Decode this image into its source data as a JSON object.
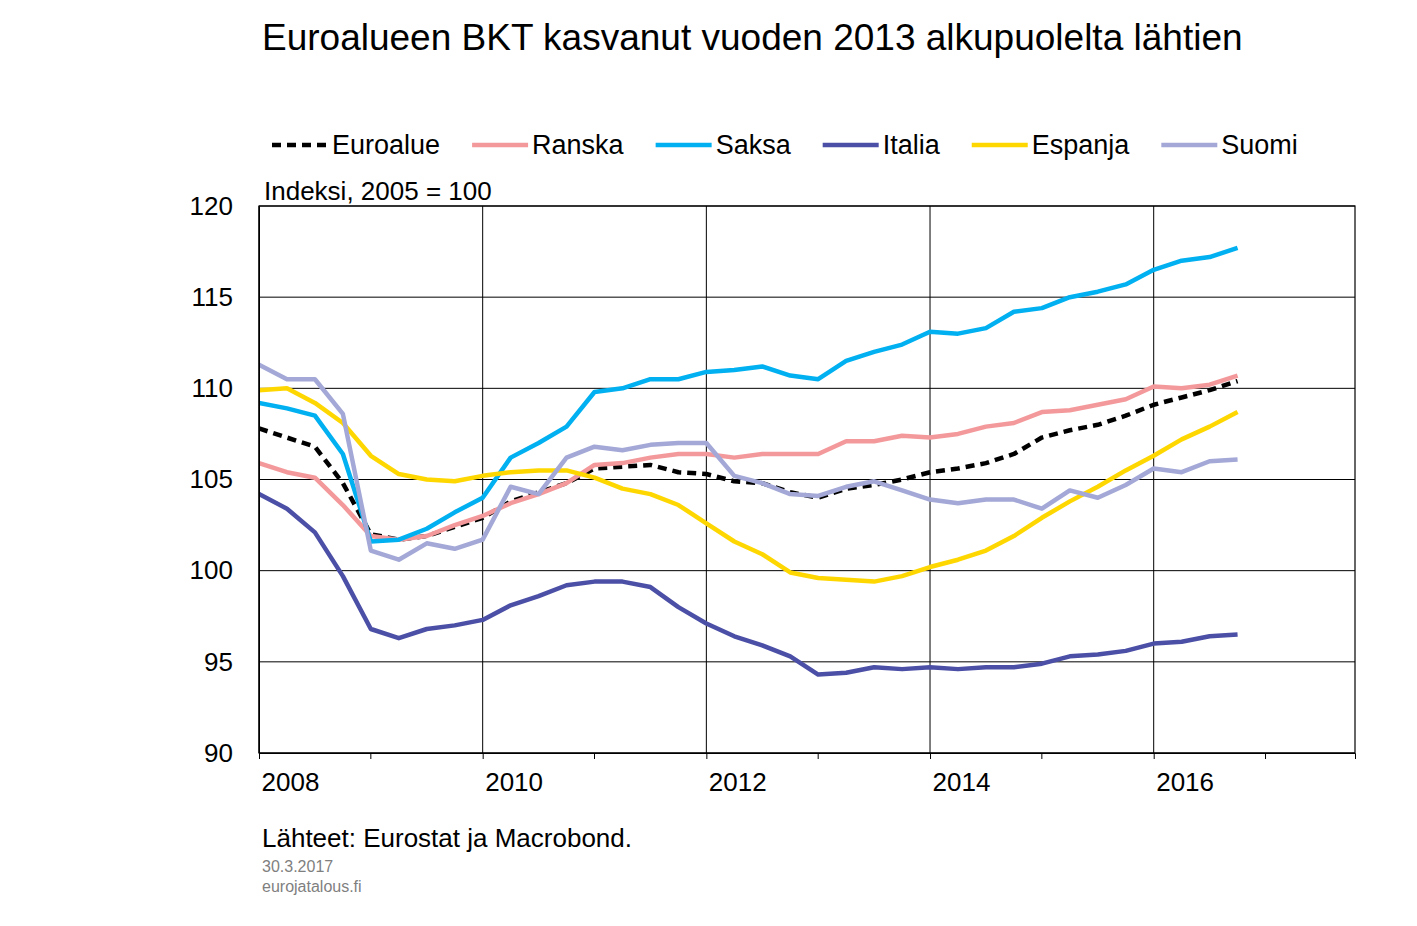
{
  "chart_data": {
    "type": "line",
    "title": "Euroalueen BKT kasvanut vuoden 2013 alkupuolelta lähtien",
    "ylabel": "Indeksi, 2005 = 100",
    "source": "Lähteet: Eurostat ja Macrobond.",
    "notes": [
      "30.3.2017",
      "eurojatalous.fi"
    ],
    "legend": "top",
    "grid": true,
    "xlim": [
      2008,
      2017.8
    ],
    "xticks": [
      2008,
      2010,
      2012,
      2014,
      2016
    ],
    "ylim": [
      90,
      120
    ],
    "yticks": [
      90,
      95,
      100,
      105,
      110,
      115,
      120
    ],
    "x": [
      2008,
      2008.25,
      2008.5,
      2008.75,
      2009,
      2009.25,
      2009.5,
      2009.75,
      2010,
      2010.25,
      2010.5,
      2010.75,
      2011,
      2011.25,
      2011.5,
      2011.75,
      2012,
      2012.25,
      2012.5,
      2012.75,
      2013,
      2013.25,
      2013.5,
      2013.75,
      2014,
      2014.25,
      2014.5,
      2014.75,
      2015,
      2015.25,
      2015.5,
      2015.75,
      2016,
      2016.25,
      2016.5,
      2016.75
    ],
    "series": [
      {
        "name": "Euroalue",
        "color": "#000000",
        "line_style": "dashed",
        "values": [
          107.8,
          107.3,
          106.8,
          104.8,
          102.0,
          101.7,
          101.9,
          102.4,
          102.9,
          103.8,
          104.3,
          104.8,
          105.6,
          105.7,
          105.8,
          105.4,
          105.3,
          104.9,
          104.8,
          104.3,
          104.0,
          104.5,
          104.7,
          105.0,
          105.4,
          105.6,
          105.9,
          106.4,
          107.3,
          107.7,
          108.0,
          108.5,
          109.1,
          109.5,
          109.9,
          110.4
        ]
      },
      {
        "name": "Ranska",
        "color": "#f4999b",
        "line_style": "solid",
        "values": [
          105.9,
          105.4,
          105.1,
          103.6,
          101.9,
          101.7,
          101.9,
          102.5,
          103.0,
          103.7,
          104.2,
          104.8,
          105.8,
          105.9,
          106.2,
          106.4,
          106.4,
          106.2,
          106.4,
          106.4,
          106.4,
          107.1,
          107.1,
          107.4,
          107.3,
          107.5,
          107.9,
          108.1,
          108.7,
          108.8,
          109.1,
          109.4,
          110.1,
          110.0,
          110.2,
          110.7
        ]
      },
      {
        "name": "Saksa",
        "color": "#00b0f0",
        "line_style": "solid",
        "values": [
          109.2,
          108.9,
          108.5,
          106.4,
          101.6,
          101.7,
          102.3,
          103.2,
          104.0,
          106.2,
          107.0,
          107.9,
          109.8,
          110.0,
          110.5,
          110.5,
          110.9,
          111.0,
          111.2,
          110.7,
          110.5,
          111.5,
          112.0,
          112.4,
          113.1,
          113.0,
          113.3,
          114.2,
          114.4,
          115.0,
          115.3,
          115.7,
          116.5,
          117.0,
          117.2,
          117.7
        ]
      },
      {
        "name": "Italia",
        "color": "#4b4fa6",
        "line_style": "solid",
        "values": [
          104.2,
          103.4,
          102.1,
          99.7,
          96.8,
          96.3,
          96.8,
          97.0,
          97.3,
          98.1,
          98.6,
          99.2,
          99.4,
          99.4,
          99.1,
          98.0,
          97.1,
          96.4,
          95.9,
          95.3,
          94.3,
          94.4,
          94.7,
          94.6,
          94.7,
          94.6,
          94.7,
          94.7,
          94.9,
          95.3,
          95.4,
          95.6,
          96.0,
          96.1,
          96.4,
          96.5
        ]
      },
      {
        "name": "Espanja",
        "color": "#ffd700",
        "line_style": "solid",
        "values": [
          109.9,
          110.0,
          109.2,
          108.1,
          106.3,
          105.3,
          105.0,
          104.9,
          105.2,
          105.4,
          105.5,
          105.5,
          105.1,
          104.5,
          104.2,
          103.6,
          102.6,
          101.6,
          100.9,
          99.9,
          99.6,
          99.5,
          99.4,
          99.7,
          100.2,
          100.6,
          101.1,
          101.9,
          102.9,
          103.8,
          104.6,
          105.5,
          106.3,
          107.2,
          107.9,
          108.7
        ]
      },
      {
        "name": "Suomi",
        "color": "#a3a8d6",
        "line_style": "solid",
        "values": [
          111.3,
          110.5,
          110.5,
          108.6,
          101.1,
          100.6,
          101.5,
          101.2,
          101.7,
          104.6,
          104.2,
          106.2,
          106.8,
          106.6,
          106.9,
          107.0,
          107.0,
          105.2,
          104.8,
          104.2,
          104.1,
          104.6,
          104.9,
          104.4,
          103.9,
          103.7,
          103.9,
          103.9,
          103.4,
          104.4,
          104.0,
          104.7,
          105.6,
          105.4,
          106.0,
          106.1
        ]
      }
    ]
  }
}
